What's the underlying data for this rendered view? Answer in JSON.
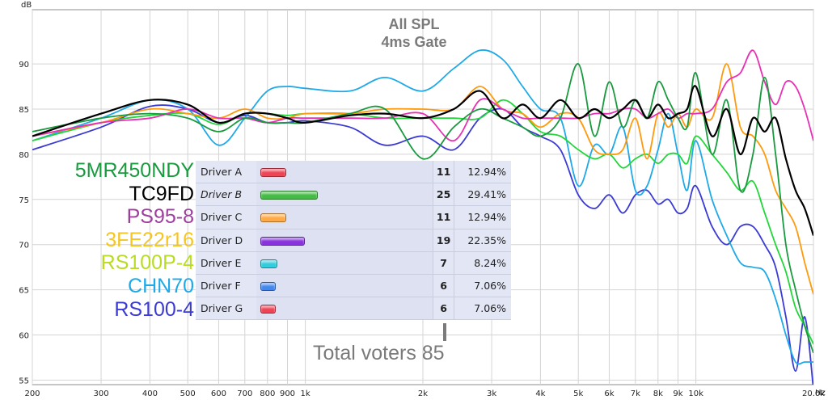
{
  "chart_data": {
    "type": "line",
    "title": "All SPL",
    "subtitle": "4ms Gate",
    "ylabel": "dB",
    "xunit": "Hz",
    "xscale": "log",
    "xlim": [
      200,
      20000
    ],
    "ylim": [
      54.5,
      96
    ],
    "grid": true,
    "legend": "left",
    "x_ticks": [
      200,
      300,
      400,
      500,
      600,
      700,
      800,
      900,
      1000,
      2000,
      3000,
      4000,
      5000,
      6000,
      7000,
      8000,
      9000,
      10000,
      20000
    ],
    "x_tick_labels": [
      "200",
      "300",
      "400",
      "500",
      "600",
      "700",
      "800",
      "900",
      "1k",
      "2k",
      "3k",
      "4k",
      "5k",
      "6k",
      "7k",
      "8k",
      "9k",
      "10k",
      "20.0k"
    ],
    "y_ticks": [
      55,
      60,
      65,
      70,
      75,
      80,
      85,
      90
    ],
    "y_tick_labels": [
      "55",
      "60",
      "65",
      "70",
      "75",
      "80",
      "85",
      "90"
    ],
    "series": [
      {
        "name": "RS100-4",
        "color": "#3a3ad4",
        "x": [
          200,
          300,
          400,
          500,
          600,
          700,
          800,
          900,
          1000,
          1300,
          1600,
          2000,
          2400,
          2800,
          3200,
          3600,
          4000,
          4500,
          5000,
          5500,
          6000,
          6500,
          7000,
          7500,
          8000,
          8500,
          9000,
          9500,
          10000,
          11000,
          12000,
          13000,
          14000,
          15000,
          16000,
          17000,
          18000,
          19000,
          20000
        ],
        "y": [
          80.5,
          83,
          85.3,
          85,
          83.5,
          84.3,
          83.5,
          83.5,
          83.7,
          83,
          81,
          82,
          80.5,
          84,
          85,
          83,
          82,
          80.5,
          75.5,
          74,
          75.5,
          73.5,
          75.5,
          76,
          74.5,
          75,
          73.5,
          74,
          76.5,
          72,
          70,
          72,
          72,
          70,
          67.5,
          62,
          56,
          62,
          54
        ]
      },
      {
        "name": "CHN70",
        "color": "#1ea9e8",
        "x": [
          200,
          300,
          400,
          500,
          600,
          700,
          800,
          900,
          1000,
          1300,
          1600,
          2000,
          2400,
          2800,
          3200,
          3600,
          4000,
          4500,
          5000,
          5500,
          6000,
          6500,
          7000,
          7500,
          8000,
          8500,
          9000,
          9500,
          10000,
          11000,
          12000,
          13000,
          14000,
          15000,
          16000,
          17000,
          18000,
          19000,
          20000
        ],
        "y": [
          81.5,
          84,
          86,
          85,
          81,
          84,
          87,
          87.5,
          87.3,
          87,
          88.5,
          87,
          89.5,
          91.5,
          90.5,
          87.5,
          85,
          84,
          76.5,
          81,
          80,
          83,
          76,
          76.5,
          80.5,
          84.5,
          80,
          76,
          81.5,
          75,
          71,
          68,
          67.5,
          67,
          64,
          60,
          57,
          57,
          57
        ]
      },
      {
        "name": "RS100P-4",
        "color": "#22d63a",
        "x": [
          200,
          300,
          400,
          500,
          600,
          700,
          800,
          900,
          1000,
          1300,
          1600,
          2000,
          2400,
          2800,
          3200,
          3600,
          4000,
          4500,
          5000,
          5500,
          6000,
          6500,
          7000,
          7500,
          8000,
          8500,
          9000,
          9500,
          10000,
          11000,
          12000,
          13000,
          14000,
          15000,
          16000,
          17000,
          18000,
          19000,
          20000
        ],
        "y": [
          81.5,
          83.5,
          84.3,
          84.5,
          83.3,
          84.5,
          84.5,
          84.3,
          84.5,
          84.5,
          84,
          84,
          84,
          84,
          86,
          84.5,
          82.5,
          82,
          80.5,
          79.5,
          80,
          78.5,
          79.5,
          80,
          79,
          80,
          80,
          79,
          82,
          80,
          78,
          76,
          77,
          73.5,
          70,
          67,
          63,
          61,
          59
        ]
      },
      {
        "name": "3FE22r16",
        "color": "#ff9a0c",
        "x": [
          200,
          300,
          400,
          500,
          600,
          700,
          800,
          900,
          1000,
          1300,
          1600,
          2000,
          2400,
          2800,
          3200,
          3600,
          4000,
          4500,
          5000,
          5500,
          6000,
          6500,
          7000,
          7500,
          8000,
          8500,
          9000,
          9500,
          10000,
          11000,
          12000,
          13000,
          14000,
          15000,
          16000,
          17000,
          18000,
          19000,
          20000
        ],
        "y": [
          82,
          83.5,
          85,
          84.5,
          84,
          85,
          84,
          84,
          84.5,
          84.5,
          85,
          85,
          85,
          87.5,
          85,
          84.5,
          83,
          84.5,
          84,
          80.5,
          80,
          80.5,
          84,
          79.5,
          84.5,
          83,
          84.5,
          83,
          85,
          84,
          90,
          83,
          82,
          80,
          76,
          74,
          72,
          68,
          64.5
        ]
      },
      {
        "name": "PS95-8",
        "color": "#e830b4",
        "x": [
          200,
          300,
          400,
          500,
          600,
          700,
          800,
          900,
          1000,
          1300,
          1600,
          2000,
          2400,
          2800,
          3200,
          3600,
          4000,
          4500,
          5000,
          5500,
          6000,
          6500,
          7000,
          7500,
          8000,
          8500,
          9000,
          9500,
          10000,
          11000,
          12000,
          13000,
          14000,
          15000,
          16000,
          17000,
          18000,
          19000,
          20000
        ],
        "y": [
          82,
          83.5,
          84,
          85,
          84,
          84,
          83.5,
          84,
          84,
          84,
          84,
          84.5,
          81.5,
          86,
          85,
          84,
          84,
          84,
          84,
          84.5,
          84.5,
          85,
          85,
          84,
          84.5,
          85,
          84,
          84.5,
          84.5,
          85,
          88,
          89,
          91.5,
          88,
          85.5,
          88,
          87.5,
          85,
          81.5
        ]
      },
      {
        "name": "5MR450NDY",
        "color": "#1a9a3e",
        "x": [
          200,
          300,
          400,
          500,
          600,
          700,
          800,
          900,
          1000,
          1300,
          1600,
          2000,
          2400,
          2800,
          3200,
          3600,
          4000,
          4500,
          5000,
          5500,
          6000,
          6500,
          7000,
          7500,
          8000,
          8500,
          9000,
          9500,
          10000,
          11000,
          12000,
          13000,
          14000,
          15000,
          16000,
          17000,
          18000,
          19000,
          20000
        ],
        "y": [
          82.5,
          84,
          84.5,
          84,
          82.5,
          84,
          83.5,
          83.5,
          83.5,
          84.5,
          85,
          79.5,
          83,
          85,
          84,
          83,
          82,
          84,
          90,
          82,
          88,
          83,
          86,
          84,
          88,
          86,
          84,
          83,
          89,
          80,
          86,
          76,
          80,
          88.5,
          80,
          70,
          65,
          61,
          58
        ]
      },
      {
        "name": "TC9FD",
        "color": "#000000",
        "x": [
          200,
          300,
          400,
          500,
          600,
          700,
          800,
          900,
          1000,
          1300,
          1600,
          2000,
          2400,
          2800,
          3200,
          3600,
          4000,
          4500,
          5000,
          5500,
          6000,
          6500,
          7000,
          7500,
          8000,
          8500,
          9000,
          9500,
          10000,
          11000,
          12000,
          13000,
          14000,
          15000,
          16000,
          17000,
          18000,
          19000,
          20000
        ],
        "y": [
          82,
          84.5,
          86,
          85.5,
          83.5,
          84.5,
          84.5,
          84,
          83.5,
          84.3,
          84.5,
          84,
          85,
          87,
          84,
          85.5,
          84,
          86,
          84,
          85,
          84,
          85,
          86,
          84,
          85.5,
          84,
          84.5,
          85,
          87.5,
          82,
          85,
          80,
          84,
          82.5,
          84,
          79.5,
          76,
          74,
          71
        ]
      }
    ]
  },
  "legend_entries": [
    {
      "label": "5MR450NDY",
      "color": "#1a9a3e"
    },
    {
      "label": "TC9FD",
      "color": "#000000"
    },
    {
      "label": "PS95-8",
      "color": "#9e3f9e"
    },
    {
      "label": "3FE22r16",
      "color": "#f5c520"
    },
    {
      "label": "RS100P-4",
      "color": "#b8dc22"
    },
    {
      "label": "CHN70",
      "color": "#1ea9e8"
    },
    {
      "label": "RS100-4",
      "color": "#3a3ad4"
    }
  ],
  "poll": {
    "rows": [
      {
        "label": "Driver A",
        "italic": false,
        "votes": "11",
        "percent": "12.94%",
        "share": 0.1294,
        "color": "#ee4455"
      },
      {
        "label": "Driver B",
        "italic": true,
        "votes": "25",
        "percent": "29.41%",
        "share": 0.2941,
        "color": "#44bb44"
      },
      {
        "label": "Driver C",
        "italic": false,
        "votes": "11",
        "percent": "12.94%",
        "share": 0.1294,
        "color": "#ffaa44"
      },
      {
        "label": "Driver D",
        "italic": false,
        "votes": "19",
        "percent": "22.35%",
        "share": 0.2235,
        "color": "#8833dd"
      },
      {
        "label": "Driver E",
        "italic": false,
        "votes": "7",
        "percent": "8.24%",
        "share": 0.0824,
        "color": "#33ccdd"
      },
      {
        "label": "Driver F",
        "italic": false,
        "votes": "6",
        "percent": "7.06%",
        "share": 0.0706,
        "color": "#4488ee"
      },
      {
        "label": "Driver G",
        "italic": false,
        "votes": "6",
        "percent": "7.06%",
        "share": 0.0706,
        "color": "#ee4455"
      }
    ],
    "total_label": "Total voters 85"
  }
}
